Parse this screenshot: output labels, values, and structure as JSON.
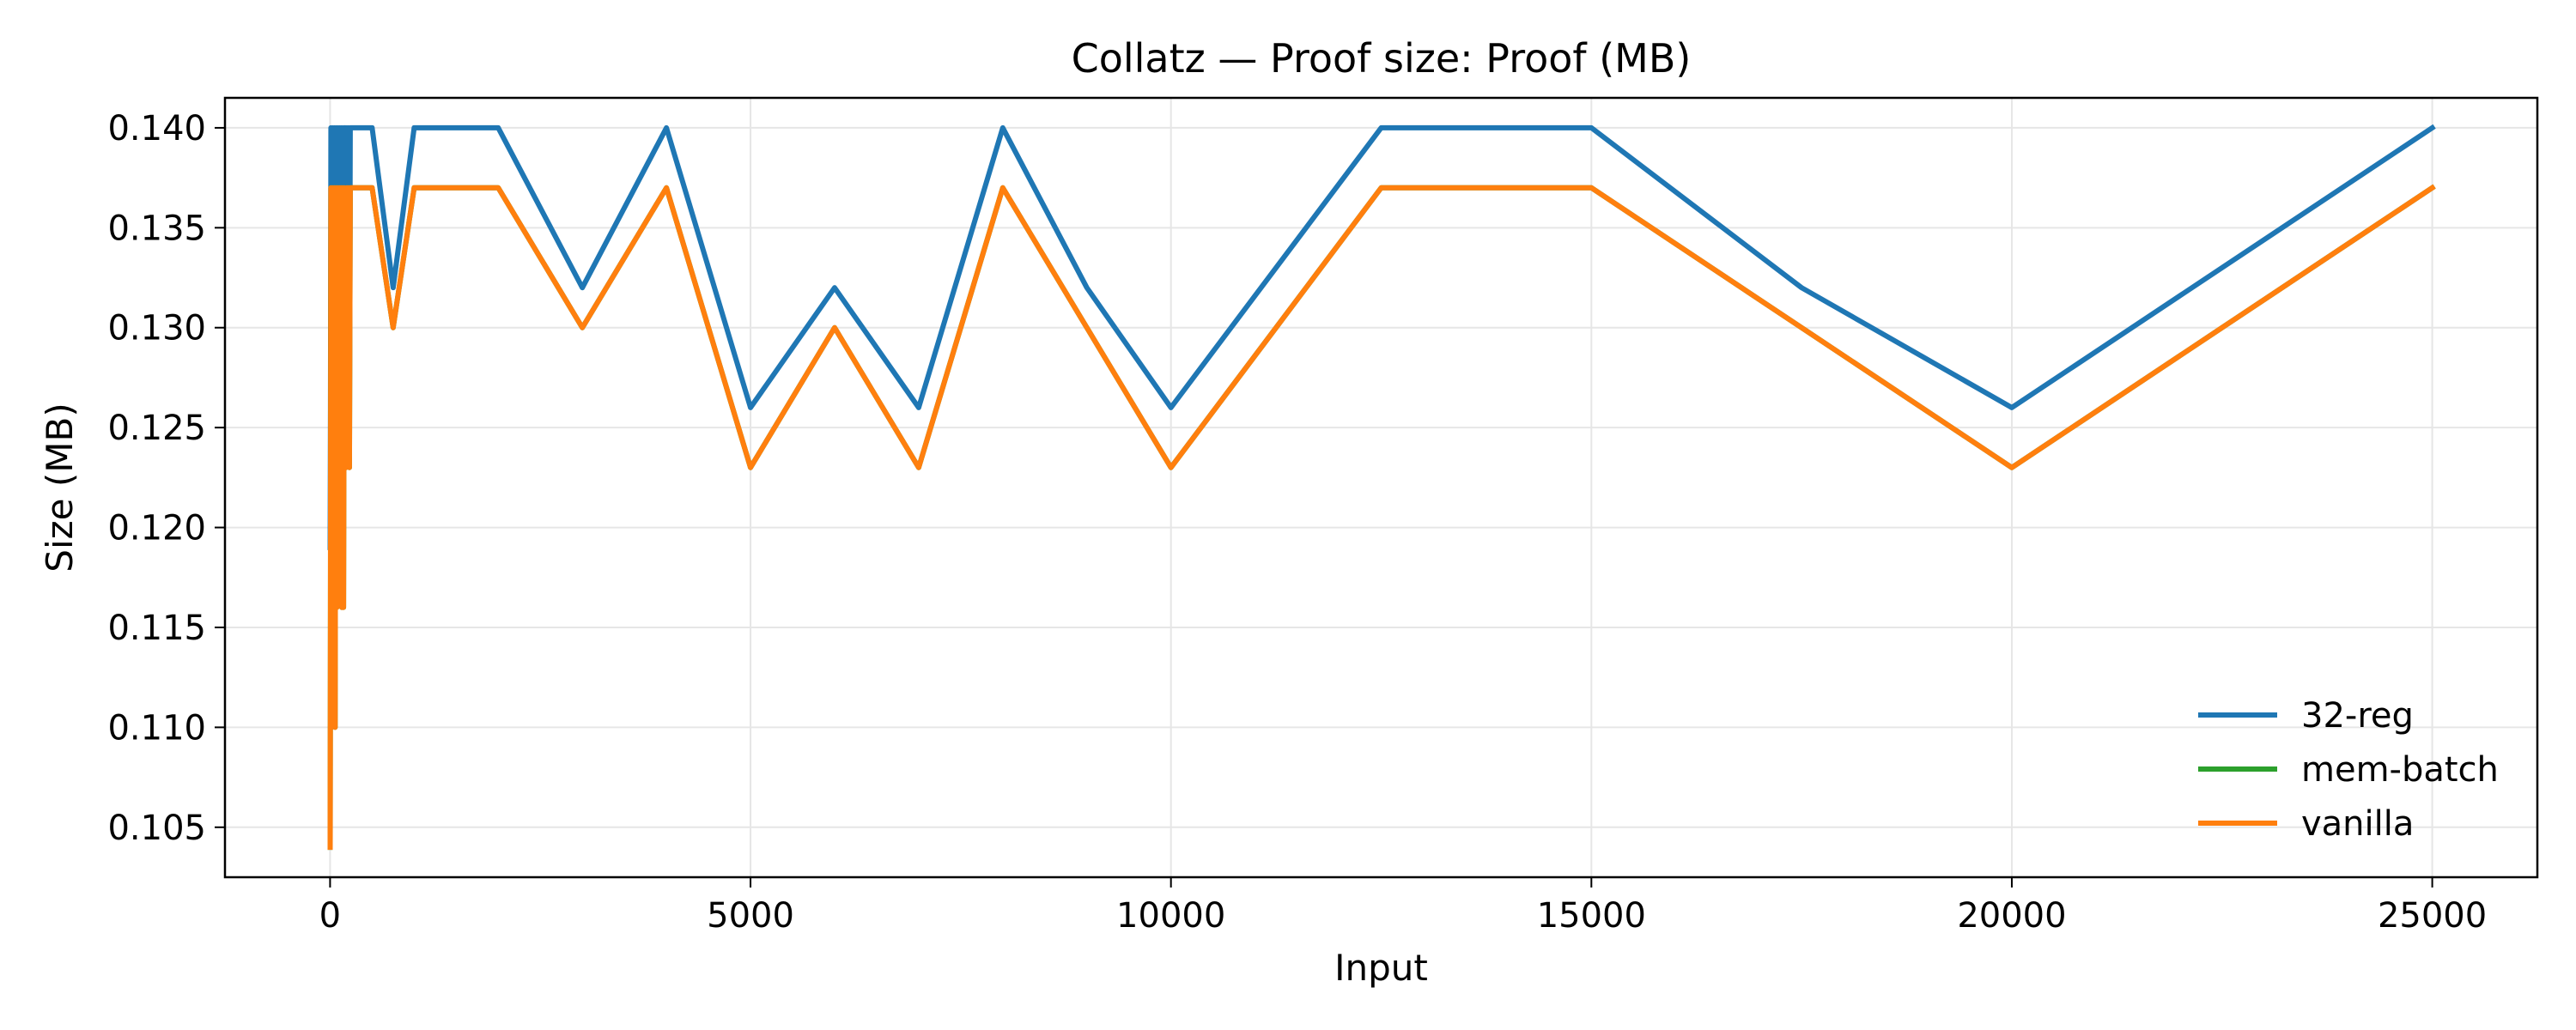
{
  "chart_data": {
    "type": "line",
    "title": "Collatz — Proof size: Proof (MB)",
    "xlabel": "Input",
    "ylabel": "Size (MB)",
    "xlim": [
      -1250,
      26250
    ],
    "ylim": [
      0.1025,
      0.1415
    ],
    "xticks": [
      0,
      5000,
      10000,
      15000,
      20000,
      25000
    ],
    "yticks": [
      0.105,
      0.11,
      0.115,
      0.12,
      0.125,
      0.13,
      0.135,
      0.14
    ],
    "ytick_labels": [
      "0.105",
      "0.110",
      "0.115",
      "0.120",
      "0.125",
      "0.130",
      "0.135",
      "0.140"
    ],
    "grid": true,
    "legend_position": "lower-right",
    "series": [
      {
        "name": "32-reg",
        "color": "#1f77b4",
        "x": [
          1,
          5,
          10,
          20,
          30,
          40,
          50,
          60,
          70,
          80,
          90,
          100,
          110,
          120,
          130,
          140,
          150,
          160,
          170,
          180,
          190,
          200,
          210,
          220,
          230,
          240,
          250,
          300,
          500,
          750,
          1000,
          2000,
          3000,
          4000,
          5000,
          6000,
          7000,
          8000,
          9000,
          10000,
          12500,
          15000,
          17500,
          20000,
          25000
        ],
        "y": [
          0.119,
          0.126,
          0.14,
          0.126,
          0.14,
          0.132,
          0.14,
          0.126,
          0.14,
          0.132,
          0.14,
          0.126,
          0.14,
          0.132,
          0.14,
          0.126,
          0.14,
          0.132,
          0.14,
          0.14,
          0.126,
          0.14,
          0.132,
          0.14,
          0.126,
          0.14,
          0.14,
          0.14,
          0.14,
          0.132,
          0.14,
          0.14,
          0.132,
          0.14,
          0.126,
          0.132,
          0.126,
          0.14,
          0.132,
          0.126,
          0.14,
          0.14,
          0.132,
          0.126,
          0.14
        ]
      },
      {
        "name": "mem-batch",
        "color": "#2ca02c",
        "x": [
          1,
          5,
          10,
          20,
          30,
          40,
          50,
          60,
          70,
          80,
          90,
          100,
          110,
          120,
          130,
          140,
          150,
          160,
          170,
          180,
          190,
          200,
          210,
          220,
          230,
          240,
          250,
          300,
          500,
          750,
          1000,
          2000,
          3000,
          4000,
          5000,
          6000,
          7000,
          8000,
          9000,
          10000,
          12500,
          15000,
          17500,
          20000,
          25000
        ],
        "y": [
          0.104,
          0.116,
          0.137,
          0.11,
          0.137,
          0.13,
          0.137,
          0.11,
          0.137,
          0.116,
          0.137,
          0.123,
          0.137,
          0.13,
          0.137,
          0.116,
          0.137,
          0.116,
          0.137,
          0.13,
          0.123,
          0.137,
          0.13,
          0.137,
          0.123,
          0.137,
          0.137,
          0.137,
          0.137,
          0.13,
          0.137,
          0.137,
          0.13,
          0.137,
          0.123,
          0.13,
          0.123,
          0.137,
          0.13,
          0.123,
          0.137,
          0.137,
          0.13,
          0.123,
          0.137
        ]
      },
      {
        "name": "vanilla",
        "color": "#ff7f0e",
        "x": [
          1,
          5,
          10,
          20,
          30,
          40,
          50,
          60,
          70,
          80,
          90,
          100,
          110,
          120,
          130,
          140,
          150,
          160,
          170,
          180,
          190,
          200,
          210,
          220,
          230,
          240,
          250,
          300,
          500,
          750,
          1000,
          2000,
          3000,
          4000,
          5000,
          6000,
          7000,
          8000,
          9000,
          10000,
          12500,
          15000,
          17500,
          20000,
          25000
        ],
        "y": [
          0.104,
          0.116,
          0.137,
          0.11,
          0.137,
          0.13,
          0.137,
          0.11,
          0.137,
          0.116,
          0.137,
          0.123,
          0.137,
          0.13,
          0.137,
          0.116,
          0.137,
          0.116,
          0.137,
          0.13,
          0.123,
          0.137,
          0.13,
          0.137,
          0.123,
          0.137,
          0.137,
          0.137,
          0.137,
          0.13,
          0.137,
          0.137,
          0.13,
          0.137,
          0.123,
          0.13,
          0.123,
          0.137,
          0.13,
          0.123,
          0.137,
          0.137,
          0.13,
          0.123,
          0.137
        ]
      }
    ]
  }
}
